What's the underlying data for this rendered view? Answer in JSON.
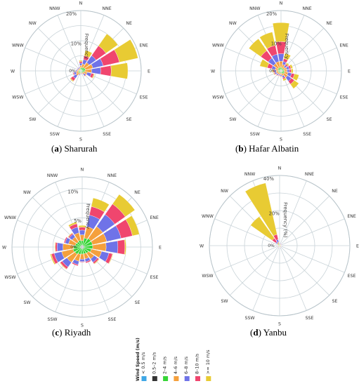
{
  "chart_data": [
    {
      "type": "wind-rose",
      "caption_letter": "a",
      "caption_name": "Sharurah",
      "radial_label": "Frequency",
      "radial_ticks": [
        {
          "value": 10,
          "label": "10%"
        },
        {
          "value": 20,
          "label": "20%"
        }
      ],
      "r_max": 20,
      "zero_label": "0%",
      "directions": [
        "N",
        "NNE",
        "NE",
        "ENE",
        "E",
        "ESE",
        "SE",
        "SSE",
        "S",
        "SSW",
        "SW",
        "WSW",
        "W",
        "WNW",
        "NW",
        "NNW"
      ],
      "bins": [
        "< 0.5 m/s",
        "0.5–2 m/s",
        "2–4 m/s",
        "4–6 m/s",
        "6–8 m/s",
        "8–10 m/s",
        ">= 10 m/s"
      ],
      "frequencies": [
        [
          0.1,
          0.3,
          0.6,
          0.8,
          0.8,
          0.5,
          0.4
        ],
        [
          0.1,
          0.3,
          0.8,
          1.2,
          1.5,
          1.3,
          1.8
        ],
        [
          0.1,
          0.3,
          1.0,
          2.0,
          2.8,
          4.0,
          4.8
        ],
        [
          0.1,
          0.3,
          1.2,
          2.5,
          3.5,
          5.5,
          6.3
        ],
        [
          0.1,
          0.3,
          1.0,
          2.2,
          3.0,
          3.5,
          5.5
        ],
        [
          0.1,
          0.3,
          0.6,
          1.2,
          1.4,
          0.8,
          0.3
        ],
        [
          0.1,
          0.3,
          0.4,
          0.6,
          0.5,
          0.3,
          0.1
        ],
        [
          0.1,
          0.2,
          0.3,
          0.3,
          0.2,
          0.1,
          0.0
        ],
        [
          0.1,
          0.2,
          0.3,
          0.3,
          0.2,
          0.0,
          0.0
        ],
        [
          0.1,
          0.2,
          0.4,
          0.5,
          0.3,
          0.1,
          0.0
        ],
        [
          0.1,
          0.2,
          0.6,
          1.0,
          1.2,
          1.0,
          0.3
        ],
        [
          0.1,
          0.2,
          0.5,
          0.8,
          0.8,
          0.3,
          0.1
        ],
        [
          0.1,
          0.2,
          0.4,
          0.6,
          0.4,
          0.1,
          0.0
        ],
        [
          0.1,
          0.2,
          0.3,
          0.4,
          0.3,
          0.1,
          0.0
        ],
        [
          0.1,
          0.2,
          0.3,
          0.4,
          0.3,
          0.1,
          0.0
        ],
        [
          0.1,
          0.2,
          0.3,
          0.4,
          0.3,
          0.1,
          0.0
        ]
      ]
    },
    {
      "type": "wind-rose",
      "caption_letter": "b",
      "caption_name": "Hafar Albatin",
      "radial_label": "Frequency",
      "radial_ticks": [
        {
          "value": 10,
          "label": "10%"
        },
        {
          "value": 20,
          "label": "20%"
        }
      ],
      "r_max": 20,
      "zero_label": "0%",
      "directions": [
        "N",
        "NNE",
        "NE",
        "ENE",
        "E",
        "ESE",
        "SE",
        "SSE",
        "S",
        "SSW",
        "SW",
        "WSW",
        "W",
        "WNW",
        "NW",
        "NNW"
      ],
      "bins": [
        "< 0.5 m/s",
        "0.5–2 m/s",
        "2–4 m/s",
        "4–6 m/s",
        "6–8 m/s",
        "8–10 m/s",
        ">= 10 m/s"
      ],
      "frequencies": [
        [
          0.1,
          0.3,
          0.8,
          2.0,
          2.5,
          4.0,
          6.3
        ],
        [
          0.1,
          0.3,
          0.6,
          1.2,
          1.0,
          1.0,
          1.8
        ],
        [
          0.1,
          0.3,
          0.5,
          0.8,
          0.6,
          0.5,
          0.5
        ],
        [
          0.1,
          0.3,
          0.6,
          1.0,
          0.8,
          0.6,
          0.6
        ],
        [
          0.1,
          0.3,
          0.6,
          1.0,
          0.8,
          0.6,
          0.6
        ],
        [
          0.1,
          0.3,
          0.8,
          1.2,
          1.2,
          1.0,
          1.5
        ],
        [
          0.1,
          0.3,
          0.8,
          1.5,
          1.5,
          1.2,
          1.8
        ],
        [
          0.1,
          0.3,
          0.5,
          0.8,
          0.6,
          0.5,
          0.6
        ],
        [
          0.1,
          0.3,
          0.4,
          0.5,
          0.4,
          0.2,
          0.2
        ],
        [
          0.1,
          0.3,
          0.4,
          0.5,
          0.3,
          0.2,
          0.1
        ],
        [
          0.1,
          0.3,
          0.4,
          0.6,
          0.4,
          0.2,
          0.1
        ],
        [
          0.1,
          0.3,
          0.5,
          0.7,
          0.5,
          0.3,
          0.2
        ],
        [
          0.1,
          0.3,
          0.5,
          0.7,
          0.6,
          0.4,
          0.4
        ],
        [
          0.1,
          0.3,
          0.6,
          1.0,
          1.2,
          1.5,
          2.5
        ],
        [
          0.1,
          0.3,
          0.8,
          1.8,
          2.2,
          3.0,
          4.8
        ],
        [
          0.1,
          0.3,
          0.8,
          2.0,
          2.5,
          3.0,
          4.5
        ]
      ]
    },
    {
      "type": "wind-rose",
      "caption_letter": "c",
      "caption_name": "Riyadh",
      "radial_label": "Frequency",
      "radial_ticks": [
        {
          "value": 5,
          "label": "5%"
        },
        {
          "value": 10,
          "label": "10%"
        }
      ],
      "r_max": 12,
      "zero_label": "0%",
      "directions": [
        "N",
        "NNE",
        "NE",
        "ENE",
        "E",
        "ESE",
        "SE",
        "SSE",
        "S",
        "SSW",
        "SW",
        "WSW",
        "W",
        "WNW",
        "NW",
        "NNW"
      ],
      "bins": [
        "< 0.5 m/s",
        "0.5–2 m/s",
        "2–4 m/s",
        "4–6 m/s",
        "6–8 m/s",
        "8–10 m/s",
        ">= 10 m/s"
      ],
      "frequencies": [
        [
          0.1,
          0.2,
          0.8,
          1.0,
          0.8,
          0.5,
          0.3
        ],
        [
          0.1,
          0.2,
          1.3,
          2.0,
          2.0,
          1.5,
          1.5
        ],
        [
          0.1,
          0.2,
          1.5,
          2.5,
          2.5,
          2.2,
          2.0
        ],
        [
          0.1,
          0.2,
          1.5,
          2.5,
          2.5,
          2.0,
          1.2
        ],
        [
          0.1,
          0.2,
          1.5,
          2.3,
          2.0,
          1.2,
          0.2
        ],
        [
          0.1,
          0.2,
          1.3,
          1.8,
          1.3,
          0.6,
          0.1
        ],
        [
          0.1,
          0.2,
          1.0,
          1.2,
          0.7,
          0.3,
          0.1
        ],
        [
          0.1,
          0.2,
          0.9,
          0.9,
          0.5,
          0.2,
          0.0
        ],
        [
          0.1,
          0.2,
          0.9,
          0.9,
          0.4,
          0.1,
          0.0
        ],
        [
          0.1,
          0.2,
          1.0,
          1.2,
          0.6,
          0.2,
          0.0
        ],
        [
          0.1,
          0.2,
          1.2,
          1.7,
          1.0,
          0.4,
          0.1
        ],
        [
          0.1,
          0.2,
          1.3,
          2.0,
          1.3,
          0.5,
          0.2
        ],
        [
          0.1,
          0.2,
          1.2,
          1.8,
          1.0,
          0.3,
          0.1
        ],
        [
          0.1,
          0.2,
          0.9,
          1.2,
          0.6,
          0.2,
          0.0
        ],
        [
          0.1,
          0.2,
          0.8,
          1.0,
          0.6,
          0.2,
          0.1
        ],
        [
          0.1,
          0.2,
          0.9,
          1.3,
          1.0,
          0.6,
          0.3
        ]
      ]
    },
    {
      "type": "wind-rose",
      "caption_letter": "d",
      "caption_name": "Yanbu",
      "radial_label": "Frequency (%)",
      "radial_ticks": [
        {
          "value": 20,
          "label": "20%"
        },
        {
          "value": 40,
          "label": "40%"
        }
      ],
      "r_max": 40,
      "zero_label": "0%",
      "directions": [
        "N",
        "NNE",
        "NE",
        "ENE",
        "E",
        "ESE",
        "SE",
        "SSE",
        "S",
        "SSW",
        "SW",
        "WSW",
        "W",
        "WNW",
        "NW",
        "NNW"
      ],
      "bins": [
        "< 0.5 m/s",
        "0.5–2 m/s",
        "2–4 m/s",
        "4–6 m/s",
        "6–8 m/s",
        "8–10 m/s",
        ">= 10 m/s"
      ],
      "frequencies": [
        [
          0.1,
          0.2,
          0.3,
          0.5,
          0.4,
          0.2,
          0.1
        ],
        [
          0.1,
          0.2,
          0.3,
          0.4,
          0.3,
          0.1,
          0.0
        ],
        [
          0.1,
          0.2,
          0.3,
          0.4,
          0.3,
          0.1,
          0.0
        ],
        [
          0.1,
          0.2,
          0.3,
          0.3,
          0.2,
          0.1,
          0.0
        ],
        [
          0.1,
          0.2,
          0.3,
          0.3,
          0.2,
          0.1,
          0.0
        ],
        [
          0.1,
          0.2,
          0.3,
          0.3,
          0.2,
          0.1,
          0.0
        ],
        [
          0.1,
          0.2,
          0.3,
          0.3,
          0.2,
          0.1,
          0.0
        ],
        [
          0.1,
          0.2,
          0.3,
          0.3,
          0.2,
          0.1,
          0.0
        ],
        [
          0.1,
          0.2,
          0.3,
          0.3,
          0.2,
          0.1,
          0.0
        ],
        [
          0.1,
          0.2,
          0.3,
          0.3,
          0.2,
          0.1,
          0.0
        ],
        [
          0.1,
          0.2,
          0.3,
          0.3,
          0.2,
          0.1,
          0.0
        ],
        [
          0.1,
          0.2,
          0.3,
          0.3,
          0.2,
          0.1,
          0.0
        ],
        [
          0.1,
          0.2,
          0.3,
          0.3,
          0.2,
          0.1,
          0.0
        ],
        [
          0.1,
          0.2,
          0.3,
          0.4,
          0.3,
          0.1,
          0.1
        ],
        [
          0.1,
          0.2,
          0.6,
          0.8,
          1.0,
          2.5,
          15.0
        ],
        [
          0.1,
          0.2,
          0.8,
          1.0,
          1.5,
          3.0,
          30.0
        ]
      ]
    }
  ],
  "legend": {
    "title": "Wind Speed (m/s)",
    "items": [
      "< 0.5 m/s",
      "0.5–2 m/s",
      "2–4 m/s",
      "4–6 m/s",
      "6–8 m/s",
      "8–10 m/s",
      ">= 10 m/s"
    ],
    "colors": [
      "#3fa7e6",
      "#333333",
      "#36d436",
      "#f5a03c",
      "#6f73e8",
      "#f0466e",
      "#e8cb33"
    ]
  }
}
